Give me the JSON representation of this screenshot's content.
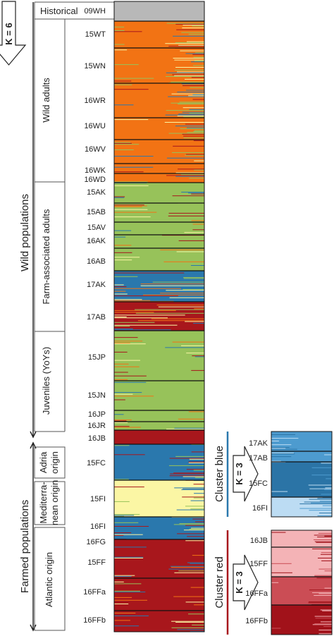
{
  "k_main": "K = 6",
  "wild_label": "Wild populations",
  "farmed_label": "Farmed populations",
  "groups": {
    "historical": "Historical",
    "wild_adults": "Wild adults",
    "farm_associated": "Farm-associated  adults",
    "juveniles": "Juveniles (YoYs)",
    "adria_1": "Adria",
    "adria_2": "origin",
    "med_1": "Mediterra-",
    "med_2": "nean origin",
    "atlantic": "Atlantic origin"
  },
  "populations": [
    "09WH",
    "15WT",
    "15WN",
    "16WR",
    "16WU",
    "16WV",
    "16WK",
    "16WD",
    "15AK",
    "15AB",
    "15AV",
    "16AK",
    "16AB",
    "17AK",
    "17AB",
    "15JP",
    "15JN",
    "16JP",
    "16JR",
    "16JB",
    "15FC",
    "15FI",
    "16FI",
    "16FG",
    "15FF",
    "16FFa",
    "16FFb"
  ],
  "cluster_blue": {
    "title": "Cluster blue",
    "k": "K = 3",
    "populations": [
      "17AK",
      "17AB",
      "15FC",
      "16FI"
    ]
  },
  "cluster_red": {
    "title": "Cluster red",
    "k": "K = 3",
    "populations": [
      "16JB",
      "15FF",
      "16FFa",
      "16FFb"
    ]
  },
  "colors": {
    "grey": "#b8b8b8",
    "orange": "#f27314",
    "green": "#97c25a",
    "blue": "#2a78ad",
    "yellow": "#fbf6a4",
    "red": "#a8171c",
    "cb_mid": "#4d9bcf",
    "cb_dark": "#2b74a6",
    "cb_light": "#bcdcf3",
    "cr_pink": "#f4b3b6",
    "cr_mid": "#cb4d55",
    "cr_dark": "#a1121a",
    "cluster_blue_line": "#2a78ad",
    "cluster_red_line": "#a8171c"
  }
}
